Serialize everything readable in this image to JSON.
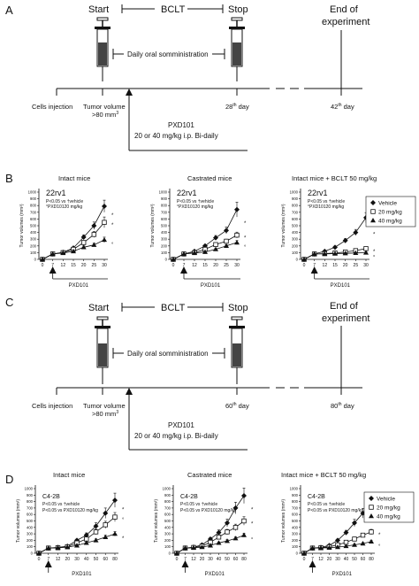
{
  "panel_letters": {
    "a": "A",
    "b": "B",
    "c": "C",
    "d": "D"
  },
  "timeline_a": {
    "start": "Start",
    "bclt": "BCLT",
    "stop": "Stop",
    "end_line1": "End of",
    "end_line2": "experiment",
    "daily": "Daily oral somministration",
    "cells": "Cells injection",
    "tumor_line1": "Tumor volume",
    "tumor_line2": ">80 mm",
    "tumor_sup": "3",
    "stop_day": "28",
    "stop_sup": "th",
    "stop_day_suffix": " day",
    "end_day": "42",
    "end_sup": "th",
    "end_day_suffix": " day",
    "drug": "PXD101",
    "dose": "20 or 40 mg/kg i.p. Bi-daily"
  },
  "timeline_c": {
    "start": "Start",
    "bclt": "BCLT",
    "stop": "Stop",
    "end_line1": "End of",
    "end_line2": "experiment",
    "daily": "Daily oral somministration",
    "cells": "Cells injection",
    "tumor_line1": "Tumor volume",
    "tumor_line2": ">80 mm",
    "tumor_sup": "3",
    "stop_day": "60",
    "stop_sup": "th",
    "stop_day_suffix": " day",
    "end_day": "80",
    "end_sup": "th",
    "end_day_suffix": " day",
    "drug": "PXD101",
    "dose": "20 or 40 mg/kg i.p. Bi-daily"
  },
  "legend": {
    "vehicle": "Vehicle",
    "dose20": "20 mg/kg",
    "dose40": "40 mg/kg"
  },
  "chart_data": [
    {
      "type": "line",
      "panel": "B",
      "title": "Intact mice",
      "cell_line": "22rv1",
      "ylabel": "Tumor volumes (mm³)",
      "xlabel": "PXD101",
      "x": [
        0,
        7,
        12,
        15,
        20,
        25,
        30
      ],
      "ylim": [
        0,
        1000
      ],
      "yticks": [
        0,
        100,
        200,
        300,
        400,
        500,
        600,
        700,
        800,
        900,
        1000
      ],
      "note1": "P<0.05 vs †vehicle",
      "note2": "°PXD10120 mg/kg",
      "series": [
        {
          "name": "Vehicle",
          "values": [
            0,
            80,
            105,
            170,
            330,
            500,
            790
          ],
          "err": [
            0,
            0,
            10,
            15,
            35,
            55,
            90
          ]
        },
        {
          "name": "20 mg/kg",
          "values": [
            0,
            80,
            100,
            150,
            250,
            370,
            550
          ],
          "err": [
            0,
            0,
            10,
            15,
            30,
            45,
            80
          ]
        },
        {
          "name": "40 mg/kg",
          "values": [
            0,
            80,
            95,
            120,
            180,
            215,
            290
          ],
          "err": [
            0,
            0,
            8,
            12,
            20,
            25,
            40
          ]
        }
      ],
      "marks": [
        "*",
        "*",
        "°"
      ]
    },
    {
      "type": "line",
      "panel": "B",
      "title": "Castrated mice",
      "cell_line": "22rv1",
      "ylabel": "Tumor volumes (mm³)",
      "xlabel": "PXD101",
      "x": [
        0,
        7,
        12,
        15,
        20,
        25,
        30
      ],
      "ylim": [
        0,
        1000
      ],
      "yticks": [
        0,
        100,
        200,
        300,
        400,
        500,
        600,
        700,
        800,
        900,
        1000
      ],
      "note1": "P<0.05 vs †vehicle",
      "note2": "°PXD10120 mg/kg",
      "series": [
        {
          "name": "Vehicle",
          "values": [
            0,
            80,
            120,
            200,
            320,
            430,
            740
          ],
          "err": [
            0,
            0,
            12,
            20,
            35,
            50,
            110
          ]
        },
        {
          "name": "20 mg/kg",
          "values": [
            0,
            80,
            100,
            150,
            220,
            270,
            360
          ],
          "err": [
            0,
            0,
            10,
            15,
            25,
            30,
            45
          ]
        },
        {
          "name": "40 mg/kg",
          "values": [
            0,
            80,
            95,
            110,
            150,
            200,
            250
          ],
          "err": [
            0,
            0,
            8,
            10,
            15,
            20,
            30
          ]
        }
      ],
      "marks": [
        "*",
        "*",
        "°"
      ]
    },
    {
      "type": "line",
      "panel": "B",
      "title": "Intact mice + BCLT 50 mg/kg",
      "cell_line": "22rv1",
      "ylabel": "Tumor volumes (mm³)",
      "xlabel": "PXD101",
      "x": [
        0,
        7,
        12,
        15,
        20,
        25,
        30
      ],
      "ylim": [
        0,
        1000
      ],
      "yticks": [
        0,
        100,
        200,
        300,
        400,
        500,
        600,
        700,
        800,
        900,
        1000
      ],
      "note1": "P<0.05 vs †vehicle",
      "note2": "°PXD10120 mg/kg",
      "series": [
        {
          "name": "Vehicle",
          "values": [
            0,
            80,
            120,
            180,
            280,
            400,
            620
          ],
          "err": [
            0,
            0,
            12,
            18,
            30,
            45,
            75
          ]
        },
        {
          "name": "20 mg/kg",
          "values": [
            0,
            80,
            85,
            95,
            110,
            130,
            160
          ],
          "err": [
            0,
            0,
            8,
            10,
            12,
            14,
            18
          ]
        },
        {
          "name": "40 mg/kg",
          "values": [
            0,
            80,
            80,
            85,
            90,
            95,
            100
          ],
          "err": [
            0,
            0,
            6,
            6,
            8,
            8,
            10
          ]
        }
      ],
      "marks": [
        "*",
        "*",
        "°"
      ]
    },
    {
      "type": "line",
      "panel": "D",
      "title": "Intact mice",
      "cell_line": "C4-2B",
      "ylabel": "Tumor volumes (mm³)",
      "xlabel": "PXD101",
      "x": [
        0,
        7,
        12,
        20,
        30,
        40,
        50,
        60,
        80
      ],
      "ylim": [
        0,
        1000
      ],
      "yticks": [
        0,
        100,
        200,
        300,
        400,
        500,
        600,
        700,
        800,
        900,
        1000
      ],
      "note1": "P<0.05 vs †vehicle",
      "note2": "P<0.05 vs PXD10120 mg/kg",
      "series": [
        {
          "name": "Vehicle",
          "values": [
            0,
            80,
            90,
            110,
            200,
            280,
            420,
            620,
            820
          ],
          "err": [
            0,
            0,
            8,
            12,
            20,
            35,
            50,
            80,
            110
          ]
        },
        {
          "name": "20 mg/kg",
          "values": [
            0,
            80,
            85,
            100,
            160,
            220,
            330,
            440,
            560
          ],
          "err": [
            0,
            0,
            8,
            10,
            18,
            25,
            40,
            55,
            70
          ]
        },
        {
          "name": "40 mg/kg",
          "values": [
            0,
            80,
            85,
            95,
            120,
            160,
            200,
            250,
            300
          ],
          "err": [
            0,
            0,
            6,
            8,
            12,
            18,
            22,
            28,
            35
          ]
        }
      ],
      "marks": [
        "*",
        "°",
        "*"
      ]
    },
    {
      "type": "line",
      "panel": "D",
      "title": "Castrated mice",
      "cell_line": "C4-2B",
      "ylabel": "Tumor volumes (mm³)",
      "xlabel": "PXD101",
      "x": [
        0,
        7,
        12,
        20,
        30,
        40,
        50,
        60,
        80
      ],
      "ylim": [
        0,
        1000
      ],
      "yticks": [
        0,
        100,
        200,
        300,
        400,
        500,
        600,
        700,
        800,
        900,
        1000
      ],
      "note1": "P<0.05 vs †vehicle",
      "note2": "P<0.05 vs PXD10120 mg/kg",
      "series": [
        {
          "name": "Vehicle",
          "values": [
            0,
            80,
            95,
            130,
            220,
            320,
            470,
            700,
            890
          ],
          "err": [
            0,
            0,
            10,
            15,
            25,
            40,
            60,
            90,
            120
          ]
        },
        {
          "name": "20 mg/kg",
          "values": [
            0,
            80,
            90,
            110,
            170,
            250,
            330,
            400,
            500
          ],
          "err": [
            0,
            0,
            8,
            12,
            18,
            28,
            40,
            50,
            65
          ]
        },
        {
          "name": "40 mg/kg",
          "values": [
            0,
            80,
            85,
            95,
            120,
            160,
            190,
            230,
            280
          ],
          "err": [
            0,
            0,
            6,
            8,
            12,
            16,
            20,
            25,
            30
          ]
        }
      ],
      "marks": [
        "*",
        "*",
        "°"
      ]
    },
    {
      "type": "line",
      "panel": "D",
      "title": "Intact mice + BCLT 50 mg/kg",
      "cell_line": "C4-2B",
      "ylabel": "Tumor volumes (mm³)",
      "xlabel": "PXD101",
      "x": [
        0,
        7,
        12,
        20,
        30,
        40,
        50,
        60,
        80
      ],
      "ylim": [
        0,
        1000
      ],
      "yticks": [
        0,
        100,
        200,
        300,
        400,
        500,
        600,
        700,
        800,
        900,
        1000
      ],
      "note1": "P<0.05 vs †vehicle",
      "note2": "P<0.05 vs PXD10120 mg/kg",
      "series": [
        {
          "name": "Vehicle",
          "values": [
            0,
            80,
            90,
            120,
            200,
            320,
            470,
            620,
            760
          ],
          "err": [
            0,
            0,
            8,
            12,
            20,
            35,
            55,
            75,
            95
          ]
        },
        {
          "name": "20 mg/kg",
          "values": [
            0,
            80,
            85,
            100,
            130,
            170,
            220,
            280,
            330
          ],
          "err": [
            0,
            0,
            8,
            10,
            14,
            18,
            22,
            30,
            40
          ]
        },
        {
          "name": "40 mg/kg",
          "values": [
            0,
            80,
            82,
            85,
            95,
            110,
            130,
            150,
            180
          ],
          "err": [
            0,
            0,
            6,
            6,
            8,
            10,
            12,
            15,
            18
          ]
        }
      ],
      "marks": [
        "*",
        "*",
        "°"
      ]
    }
  ]
}
